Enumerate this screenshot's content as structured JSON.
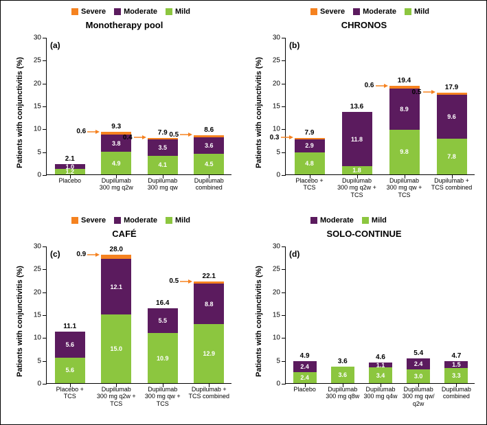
{
  "colors": {
    "mild": "#8cc63f",
    "moderate": "#5b1b5e",
    "severe": "#f58220",
    "axis": "#000000",
    "bg": "#ffffff"
  },
  "legend": {
    "severe": "Severe",
    "moderate": "Moderate",
    "mild": "Mild"
  },
  "ylabel": "Patients with conjunctivitis (%)",
  "panels": {
    "a": {
      "tag": "(a)",
      "title": "Monotherapy pool",
      "ymax": 30,
      "ytick_step": 5,
      "bars": [
        {
          "cat": "Placebo",
          "mild": 1.2,
          "moderate": 1.0,
          "severe": 0,
          "total": "2.1",
          "mild_lbl": "1.2",
          "mod_lbl": "1.0"
        },
        {
          "cat": "Dupilumab\n300 mg q2w",
          "mild": 4.9,
          "moderate": 3.8,
          "severe": 0.6,
          "total": "9.3",
          "mild_lbl": "4.9",
          "mod_lbl": "3.8",
          "arrow": "0.6"
        },
        {
          "cat": "Dupilumab\n300 mg qw",
          "mild": 4.1,
          "moderate": 3.5,
          "severe": 0.4,
          "total": "7.9",
          "mild_lbl": "4.1",
          "mod_lbl": "3.5",
          "arrow": "0.4"
        },
        {
          "cat": "Dupilumab\ncombined",
          "mild": 4.5,
          "moderate": 3.6,
          "severe": 0.5,
          "total": "8.6",
          "mild_lbl": "4.5",
          "mod_lbl": "3.6",
          "arrow": "0.5"
        }
      ]
    },
    "b": {
      "tag": "(b)",
      "title": "CHRONOS",
      "ymax": 30,
      "ytick_step": 5,
      "bars": [
        {
          "cat": "Placebo +\nTCS",
          "mild": 4.8,
          "moderate": 2.9,
          "severe": 0.3,
          "total": "7.9",
          "mild_lbl": "4.8",
          "mod_lbl": "2.9",
          "arrow": "0.3"
        },
        {
          "cat": "Dupilumab\n300 mg q2w +\nTCS",
          "mild": 1.8,
          "moderate": 11.8,
          "severe": 0,
          "total": "13.6",
          "mild_lbl": "1.8",
          "mod_lbl": "11.8"
        },
        {
          "cat": "Dupilumab\n300 mg qw +\nTCS",
          "mild": 9.8,
          "moderate": 8.9,
          "severe": 0.6,
          "total": "19.4",
          "mild_lbl": "9.8",
          "mod_lbl": "8.9",
          "arrow": "0.6"
        },
        {
          "cat": "Dupilumab +\nTCS combined",
          "mild": 7.8,
          "moderate": 9.6,
          "severe": 0.5,
          "total": "17.9",
          "mild_lbl": "7.8",
          "mod_lbl": "9.6",
          "arrow": "0.5"
        }
      ]
    },
    "c": {
      "tag": "(c)",
      "title": "CAFÉ",
      "ymax": 30,
      "ytick_step": 5,
      "bars": [
        {
          "cat": "Placebo +\nTCS",
          "mild": 5.6,
          "moderate": 5.6,
          "severe": 0,
          "total": "11.1",
          "mild_lbl": "5.6",
          "mod_lbl": "5.6"
        },
        {
          "cat": "Dupilumab\n300 mg q2w +\nTCS",
          "mild": 15.0,
          "moderate": 12.1,
          "severe": 0.9,
          "total": "28.0",
          "mild_lbl": "15.0",
          "mod_lbl": "12.1",
          "arrow": "0.9"
        },
        {
          "cat": "Dupilumab\n300 mg qw +\nTCS",
          "mild": 10.9,
          "moderate": 5.5,
          "severe": 0,
          "total": "16.4",
          "mild_lbl": "10.9",
          "mod_lbl": "5.5"
        },
        {
          "cat": "Dupilumab +\nTCS combined",
          "mild": 12.9,
          "moderate": 8.8,
          "severe": 0.5,
          "total": "22.1",
          "mild_lbl": "12.9",
          "mod_lbl": "8.8",
          "arrow": "0.5"
        }
      ]
    },
    "d": {
      "tag": "(d)",
      "title": "SOLO-CONTINUE",
      "ymax": 30,
      "ytick_step": 5,
      "no_severe": true,
      "bars": [
        {
          "cat": "Placebo",
          "mild": 2.4,
          "moderate": 2.4,
          "severe": 0,
          "total": "4.9",
          "mild_lbl": "2.4",
          "mod_lbl": "2.4"
        },
        {
          "cat": "Dupilumab\n300 mg q8w",
          "mild": 3.6,
          "moderate": 0,
          "severe": 0,
          "total": "3.6",
          "mild_lbl": "3.6"
        },
        {
          "cat": "Dupilumab\n300 mg q4w",
          "mild": 3.4,
          "moderate": 1.1,
          "severe": 0,
          "total": "4.6",
          "mild_lbl": "3.4",
          "mod_lbl": "1.1"
        },
        {
          "cat": "Dupilumab\n300 mg qw/\nq2w",
          "mild": 3.0,
          "moderate": 2.4,
          "severe": 0,
          "total": "5.4",
          "mild_lbl": "3.0",
          "mod_lbl": "2.4"
        },
        {
          "cat": "Dupilumab\ncombined",
          "mild": 3.3,
          "moderate": 1.5,
          "severe": 0,
          "total": "4.7",
          "mild_lbl": "3.3",
          "mod_lbl": "1.5"
        }
      ]
    }
  }
}
